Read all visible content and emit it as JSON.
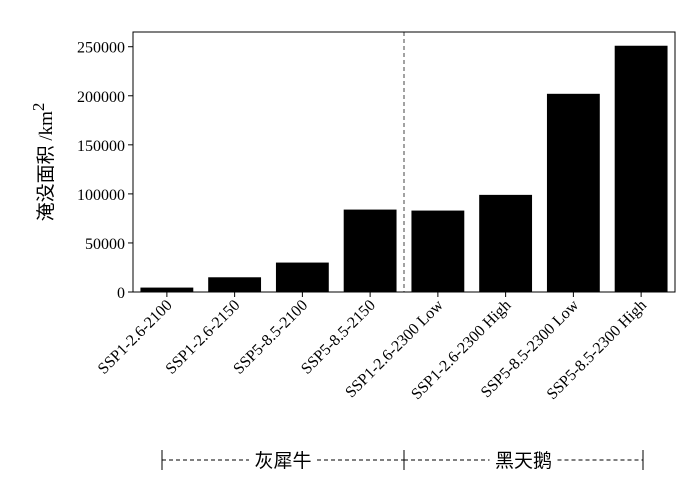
{
  "chart_data": {
    "type": "bar",
    "categories": [
      "SSP1-2.6-2100",
      "SSP1-2.6-2150",
      "SSP5-8.5-2100",
      "SSP5-8.5-2150",
      "SSP1-2.6-2300 Low",
      "SSP1-2.6-2300 High",
      "SSP5-8.5-2300 Low",
      "SSP5-8.5-2300 High"
    ],
    "values": [
      4500,
      15000,
      30000,
      84000,
      83000,
      99000,
      202000,
      251000
    ],
    "ylabel": "淹没面积 /km",
    "ylabel_superscript": "2",
    "ylim": [
      0,
      265000
    ],
    "yticks": [
      "0",
      "50000",
      "100000",
      "150000",
      "200000",
      "250000"
    ],
    "ytick_values": [
      0,
      50000,
      100000,
      150000,
      200000,
      250000
    ],
    "bar_color": "#000000",
    "grid": false,
    "divider_after_category": 3,
    "groups": [
      {
        "label": "灰犀牛",
        "from": 0,
        "to": 3
      },
      {
        "label": "黑天鹅",
        "from": 4,
        "to": 7
      }
    ]
  }
}
